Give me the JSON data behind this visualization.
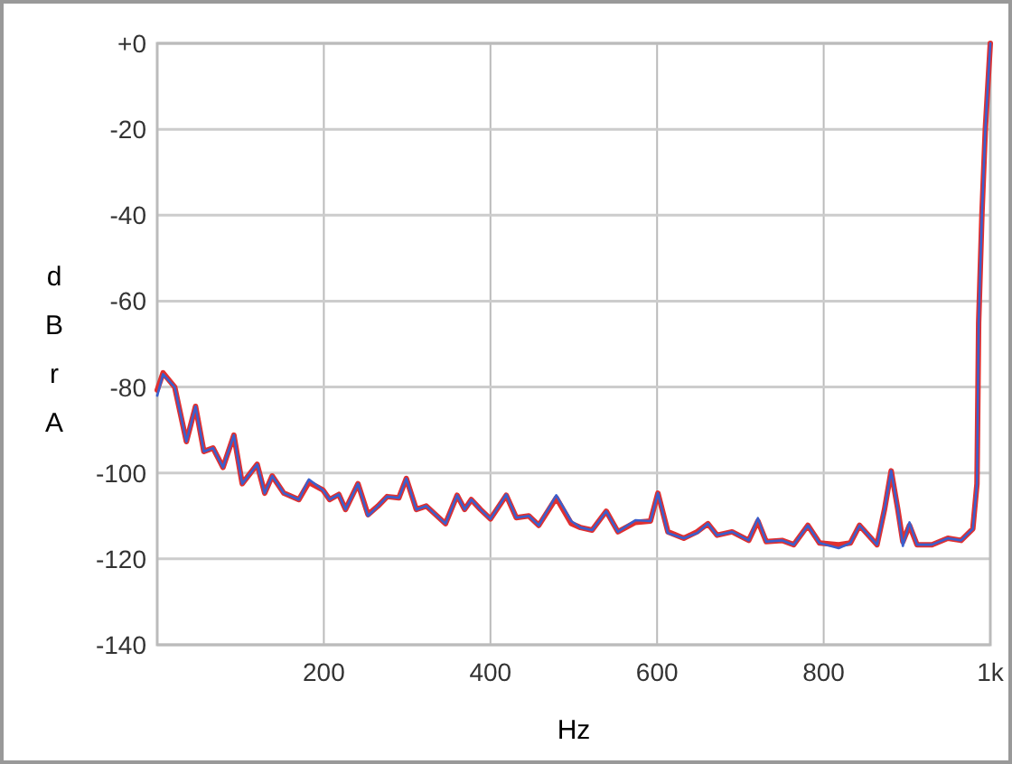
{
  "chart_data": {
    "type": "line",
    "xlabel": "Hz",
    "ylabel": "dBrA",
    "xlim": [
      0,
      1000
    ],
    "ylim": [
      -140,
      0
    ],
    "xticks": [
      200,
      400,
      600,
      800,
      {
        "value": 1000,
        "label": "1k"
      }
    ],
    "yticks": [
      {
        "value": 0,
        "label": "+0"
      },
      -20,
      -40,
      -60,
      -80,
      -100,
      -120,
      -140
    ],
    "grid": true,
    "marker": "none",
    "line_style": "solid",
    "x": [
      0,
      7,
      21,
      35,
      46,
      56,
      67,
      79,
      92,
      102,
      120,
      129,
      138,
      152,
      170,
      182,
      199,
      207,
      218,
      226,
      241,
      253,
      265,
      276,
      290,
      299,
      311,
      323,
      346,
      360,
      369,
      377,
      388,
      400,
      419,
      431,
      446,
      458,
      479,
      497,
      508,
      522,
      539,
      553,
      574,
      592,
      601,
      613,
      632,
      648,
      661,
      672,
      690,
      710,
      721,
      731,
      750,
      764,
      781,
      795,
      818,
      832,
      843,
      864,
      873,
      881,
      889,
      895,
      903,
      912,
      930,
      949,
      965,
      979,
      984,
      986,
      990,
      994,
      1000
    ],
    "series": [
      {
        "color": "#3a5fcd",
        "values": [
          -82,
          -77,
          -80,
          -92.7,
          -84.5,
          -95,
          -94.2,
          -98.7,
          -91.2,
          -102.5,
          -98,
          -104.7,
          -100.7,
          -104.7,
          -106.2,
          -101.5,
          -104,
          -106.2,
          -105,
          -108.5,
          -102.5,
          -110,
          -107.7,
          -105.5,
          -105.8,
          -101.3,
          -108.5,
          -107.7,
          -111.8,
          -105.2,
          -108.5,
          -106.2,
          -108.5,
          -110.7,
          -105,
          -110.4,
          -110,
          -112.2,
          -105.2,
          -111.2,
          -112.7,
          -113.3,
          -108.9,
          -113.7,
          -111,
          -111.2,
          -104.7,
          -114,
          -115.2,
          -114,
          -111.8,
          -114.5,
          -113.7,
          -115.7,
          -110.5,
          -116,
          -115.7,
          -116.7,
          -112.2,
          -116.3,
          -117.5,
          -116.3,
          -112.2,
          -116.7,
          -108.5,
          -99.5,
          -108.5,
          -117,
          -111.5,
          -116.7,
          -116.7,
          -115.2,
          -115.7,
          -113,
          -102.5,
          -65,
          -39.5,
          -20,
          0
        ]
      },
      {
        "color": "#e03030",
        "values": [
          -80.7,
          -76.7,
          -80,
          -92.7,
          -84.5,
          -95,
          -94.2,
          -98.7,
          -91.2,
          -102.5,
          -98,
          -104.7,
          -100.7,
          -104.7,
          -106.2,
          -102.2,
          -104,
          -106.2,
          -105,
          -108.5,
          -102.5,
          -109.7,
          -107.7,
          -105.5,
          -105.8,
          -101.3,
          -108.5,
          -107.7,
          -111.8,
          -105.2,
          -108.5,
          -106.2,
          -108.5,
          -110.7,
          -105.2,
          -110.4,
          -110,
          -112.2,
          -105.8,
          -111.8,
          -112.7,
          -113.3,
          -108.9,
          -113.7,
          -111.5,
          -111.2,
          -104.7,
          -113.7,
          -115.2,
          -113.7,
          -111.8,
          -114.5,
          -113.7,
          -115.7,
          -111.2,
          -116,
          -115.7,
          -116.7,
          -112.2,
          -116.3,
          -116.7,
          -116.3,
          -112.2,
          -116.7,
          -108.5,
          -99.5,
          -108.5,
          -116,
          -112.2,
          -116.7,
          -116.7,
          -115.2,
          -115.7,
          -113,
          -102.5,
          -65,
          -39.5,
          -20,
          0
        ]
      }
    ]
  }
}
